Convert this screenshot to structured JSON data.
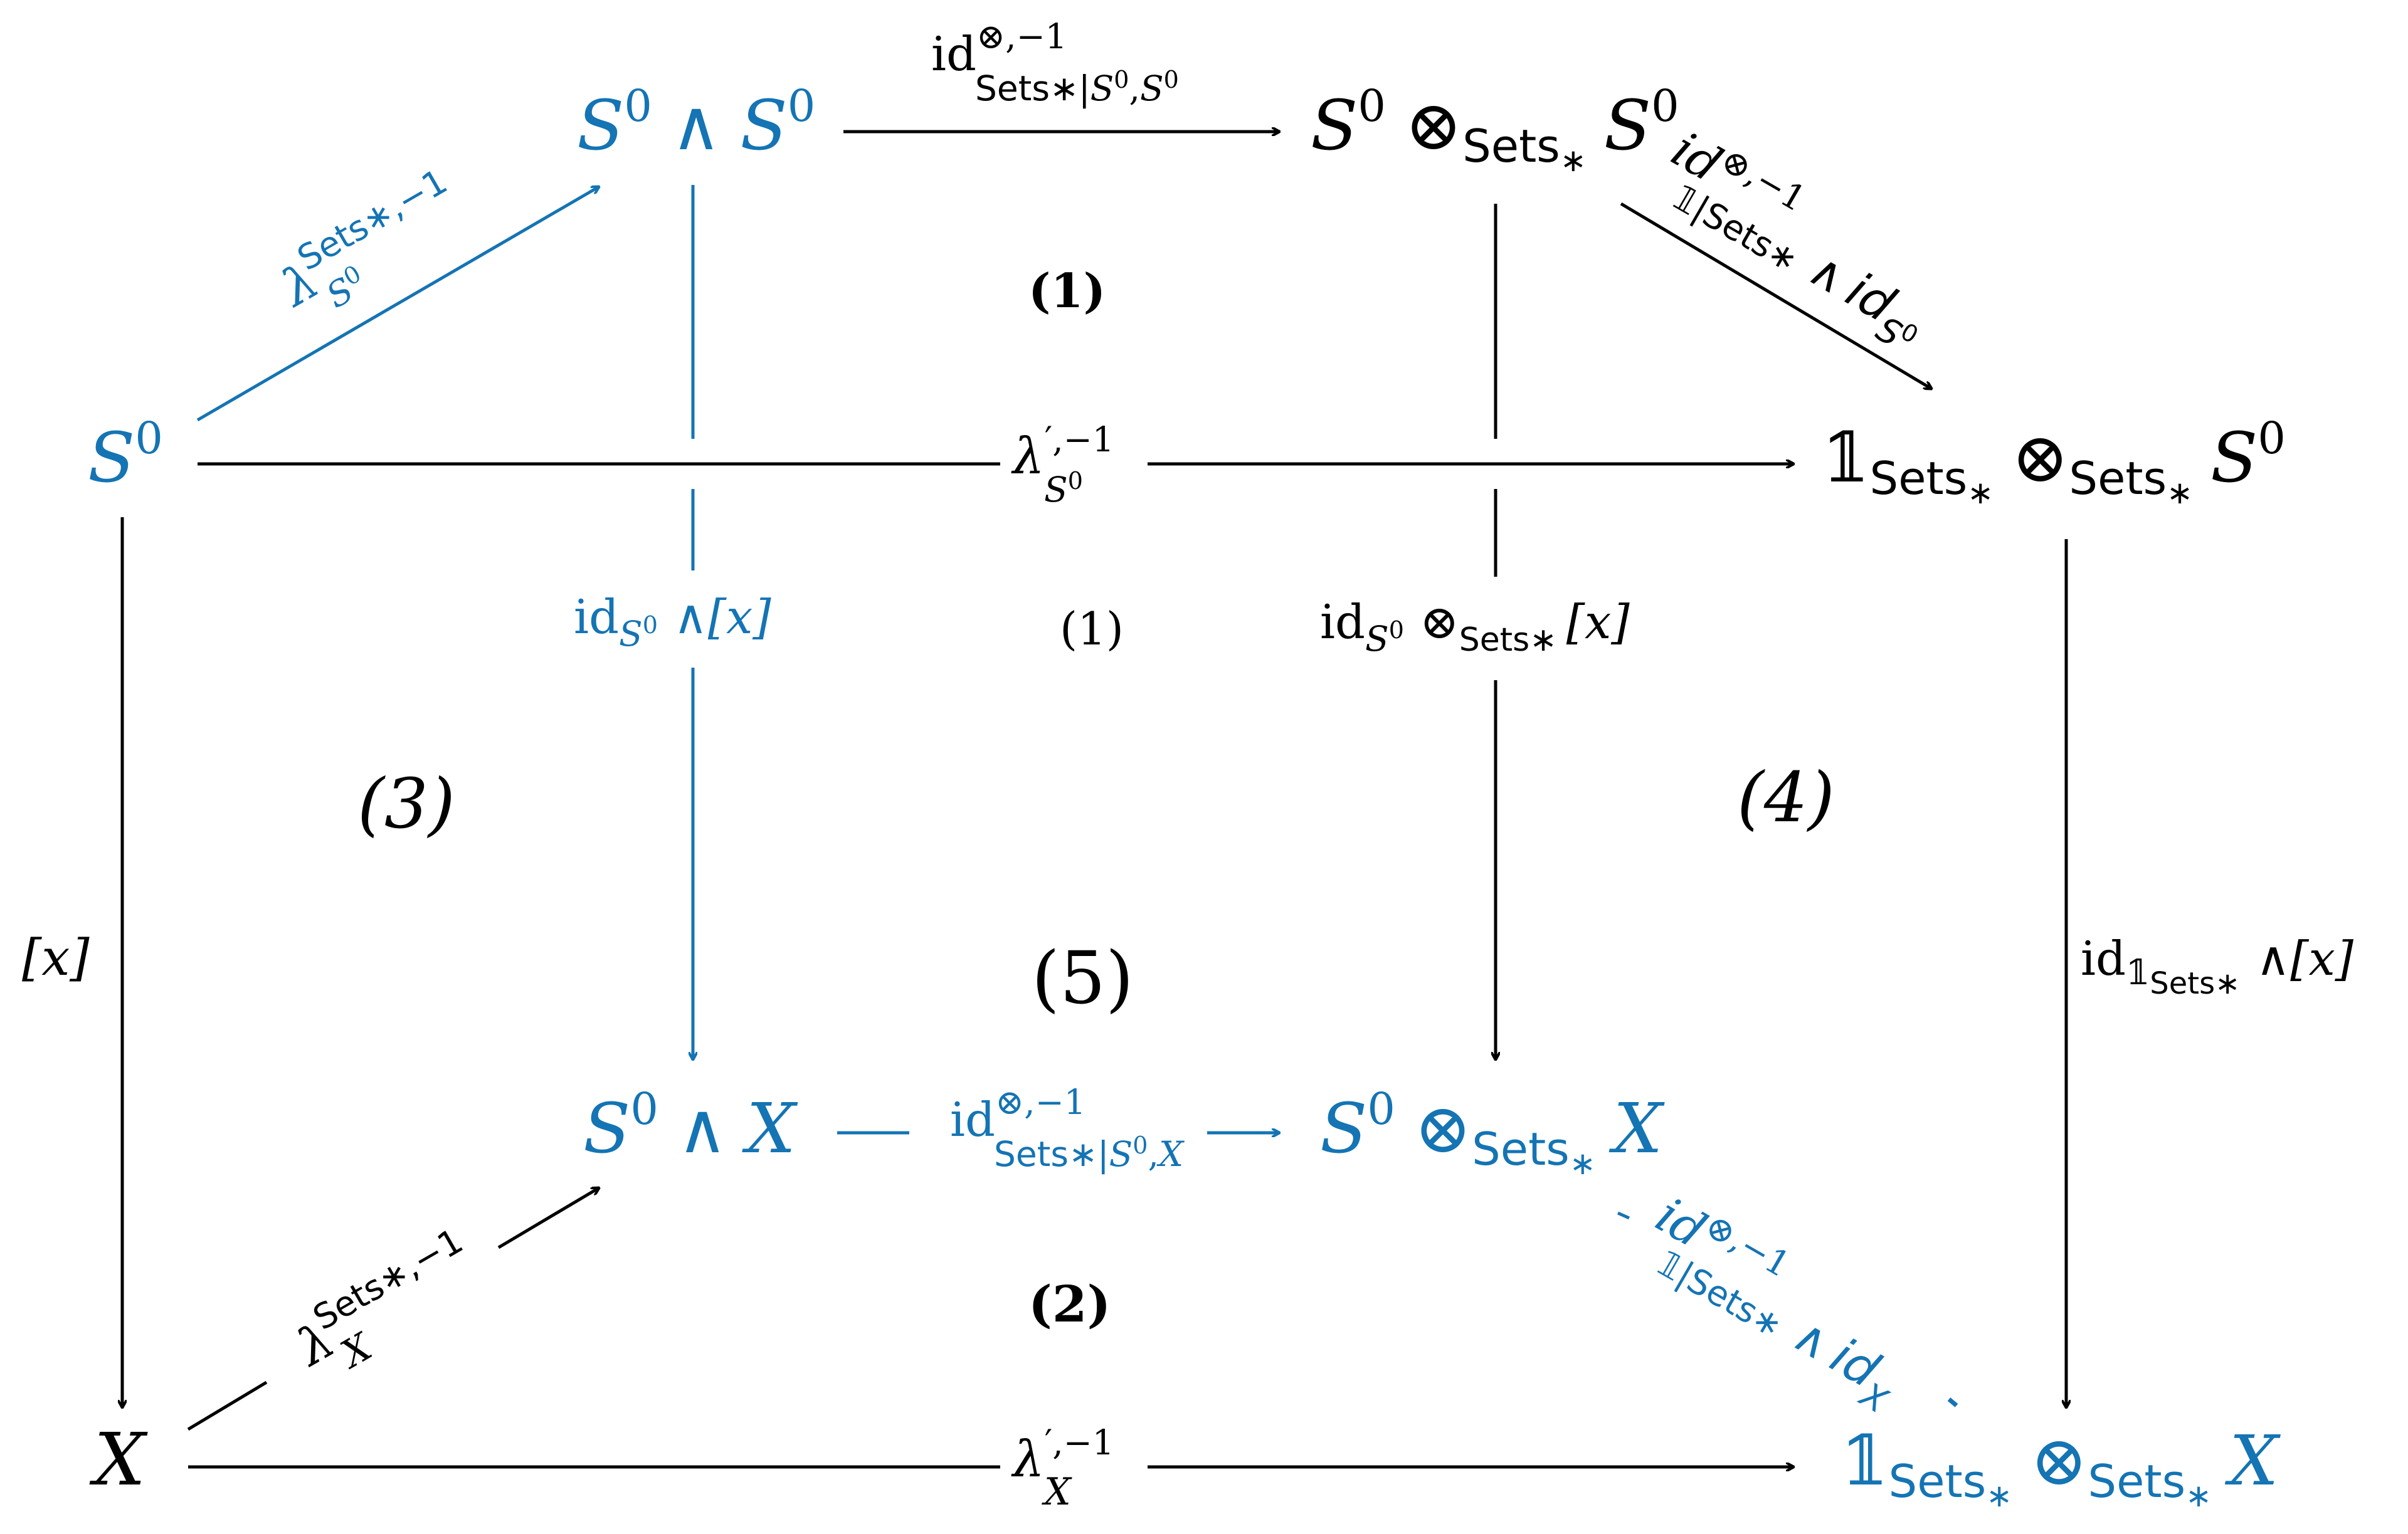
{
  "colors": {
    "black": "#000000",
    "blue": "#1474b4"
  },
  "nodes": {
    "s0_left": {
      "base": "S",
      "sup": "0"
    },
    "s0_wedge_s0": {
      "a": "S",
      "a_sup": "0",
      "op": "∧",
      "b": "S",
      "b_sup": "0"
    },
    "s0_otimes_s0": {
      "a": "S",
      "a_sup": "0",
      "op": "⊗",
      "sub": "Sets",
      "sub_star": "∗",
      "b": "S",
      "b_sup": "0"
    },
    "one_otimes_s0": {
      "one": "𝟙",
      "one_sub": "Sets",
      "one_sub_star": "∗",
      "op": "⊗",
      "sub": "Sets",
      "sub_star": "∗",
      "b": "S",
      "b_sup": "0"
    },
    "x_left": {
      "base": "X"
    },
    "s0_wedge_x": {
      "a": "S",
      "a_sup": "0",
      "op": "∧",
      "b": "X"
    },
    "s0_otimes_x": {
      "a": "S",
      "a_sup": "0",
      "op": "⊗",
      "sub": "Sets",
      "sub_star": "∗",
      "b": "X"
    },
    "one_otimes_x": {
      "one": "𝟙",
      "one_sub": "Sets",
      "one_sub_star": "∗",
      "op": "⊗",
      "sub": "Sets",
      "sub_star": "∗",
      "b": "X"
    }
  },
  "labels": {
    "id_top": {
      "base": "id",
      "sup": "⊗,−1",
      "sub": "Sets∗|",
      "sub_tail": "S",
      "sub_tail_sup": "0",
      "sub_comma": ",",
      "sub_tail2": "S",
      "sub_tail2_sup": "0"
    },
    "lambda_s0_blue": {
      "base": "λ",
      "sup": "Sets∗,−1",
      "sub": "S",
      "sub_sup": "0"
    },
    "id_one_s0": {
      "base": "id",
      "sup": "⊗,−1",
      "sub": "𝟙|Sets∗",
      "wedge": "∧",
      "id2": "id",
      "id2_sub": "S",
      "id2_sub_sup": "0"
    },
    "lambda_prime_s0": {
      "base": "λ",
      "sup": "′,−1",
      "sub": "S",
      "sub_sup": "0"
    },
    "id_s0_wedge_x": {
      "base": "id",
      "sub": "S",
      "sub_sup": "0",
      "op": "∧",
      "arg": "[x]"
    },
    "id_s0_otimes_x": {
      "base": "id",
      "sub": "S",
      "sub_sup": "0",
      "op": "⊗",
      "op_sub": "Sets∗",
      "arg": "[x]"
    },
    "x_bracket": {
      "text": "[x]"
    },
    "id_one_wedge_x": {
      "base": "id",
      "sub": "𝟙",
      "sub_sub": "Sets∗",
      "op": "∧",
      "arg": "[x]"
    },
    "id_bottom_blue": {
      "base": "id",
      "sup": "⊗,−1",
      "sub": "Sets∗|",
      "sub_tail": "S",
      "sub_tail_sup": "0",
      "sub_comma": ",",
      "sub_tail2": "X"
    },
    "lambda_x": {
      "base": "λ",
      "sup": "Sets∗,−1",
      "sub": "X"
    },
    "id_one_x_blue": {
      "base": "id",
      "sup": "⊗,−1",
      "sub": "𝟙|Sets∗",
      "wedge": "∧",
      "id2": "id",
      "id2_sub": "X"
    },
    "lambda_prime_x": {
      "base": "λ",
      "sup": "′,−1",
      "sub": "X"
    }
  },
  "region_numbers": {
    "r1": "(1)",
    "r2": "(2)",
    "r3": "(3)",
    "r4": "(4)",
    "r5": "(5)",
    "rtop": "(1)"
  }
}
